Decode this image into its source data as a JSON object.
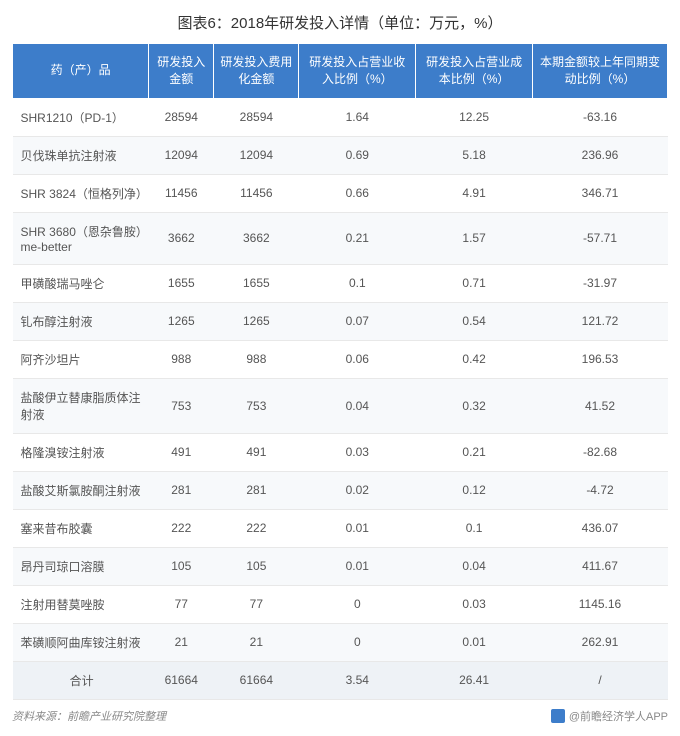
{
  "title": "图表6：2018年研发投入详情（单位：万元，%）",
  "table": {
    "columns": [
      "药（产）品",
      "研发投入金额",
      "研发投入费用化金额",
      "研发投入占营业收入比例（%）",
      "研发投入占营业成本比例（%）",
      "本期金额较上年同期变动比例（%）"
    ],
    "header_bg": "#3d7dca",
    "header_color": "#ffffff",
    "row_even_bg": "#f7f9fb",
    "row_odd_bg": "#ffffff",
    "total_row_bg": "#eef2f6",
    "border_color": "#e8e8e8",
    "text_color": "#555555",
    "rows": [
      [
        "SHR1210（PD-1）",
        "28594",
        "28594",
        "1.64",
        "12.25",
        "-63.16"
      ],
      [
        "贝伐珠单抗注射液",
        "12094",
        "12094",
        "0.69",
        "5.18",
        "236.96"
      ],
      [
        "SHR 3824（恒格列净）",
        "11456",
        "11456",
        "0.66",
        "4.91",
        "346.71"
      ],
      [
        "SHR 3680（恩杂鲁胺）me-better",
        "3662",
        "3662",
        "0.21",
        "1.57",
        "-57.71"
      ],
      [
        "甲磺酸瑞马唑仑",
        "1655",
        "1655",
        "0.1",
        "0.71",
        "-31.97"
      ],
      [
        "钆布醇注射液",
        "1265",
        "1265",
        "0.07",
        "0.54",
        "121.72"
      ],
      [
        "阿齐沙坦片",
        "988",
        "988",
        "0.06",
        "0.42",
        "196.53"
      ],
      [
        "盐酸伊立替康脂质体注射液",
        "753",
        "753",
        "0.04",
        "0.32",
        "41.52"
      ],
      [
        "格隆溴铵注射液",
        "491",
        "491",
        "0.03",
        "0.21",
        "-82.68"
      ],
      [
        "盐酸艾斯氯胺酮注射液",
        "281",
        "281",
        "0.02",
        "0.12",
        "-4.72"
      ],
      [
        "塞来昔布胶囊",
        "222",
        "222",
        "0.01",
        "0.1",
        "436.07"
      ],
      [
        "昂丹司琼口溶膜",
        "105",
        "105",
        "0.01",
        "0.04",
        "411.67"
      ],
      [
        "注射用替莫唑胺",
        "77",
        "77",
        "0",
        "0.03",
        "1145.16"
      ],
      [
        "苯磺顺阿曲库铵注射液",
        "21",
        "21",
        "0",
        "0.01",
        "262.91"
      ]
    ],
    "total_row": [
      "合计",
      "61664",
      "61664",
      "3.54",
      "26.41",
      "/"
    ]
  },
  "footer": {
    "source": "资料来源：前瞻产业研究院整理",
    "watermark": "@前瞻经济学人APP"
  },
  "colors": {
    "title_color": "#333333",
    "footer_color": "#888888"
  }
}
